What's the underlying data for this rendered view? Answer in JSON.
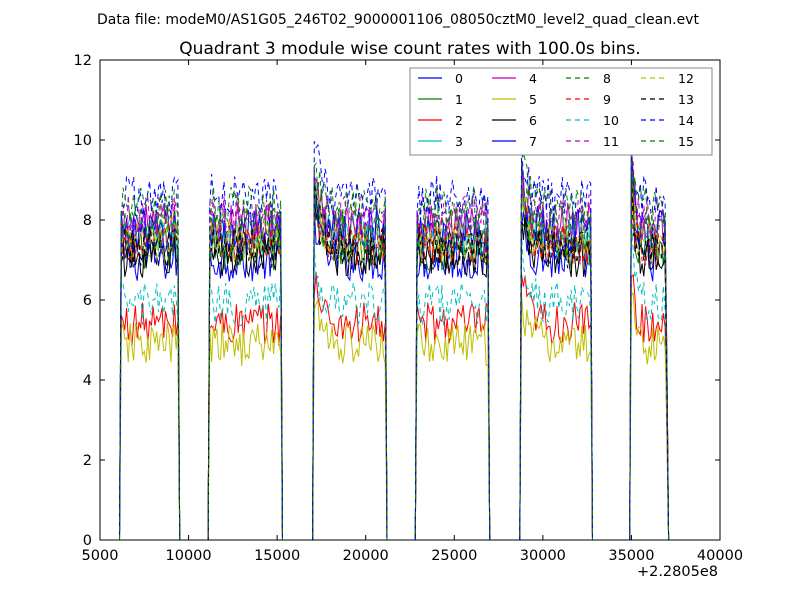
{
  "figure": {
    "suptitle": "Data file: modeM0/AS1G05_246T02_9000001106_08050cztM0_level2_quad_clean.evt"
  },
  "chart_data": {
    "type": "line",
    "title": "Quadrant 3 module wise count rates with 100.0s bins.",
    "xlabel": "",
    "ylabel": "",
    "xlim": [
      5000,
      40000
    ],
    "ylim": [
      0,
      12
    ],
    "x_ticks": [
      5000,
      10000,
      15000,
      20000,
      25000,
      30000,
      35000,
      40000
    ],
    "x_tick_labels": [
      "5000",
      "10000",
      "15000",
      "20000",
      "25000",
      "30000",
      "35000",
      "40000"
    ],
    "y_ticks": [
      0,
      2,
      4,
      6,
      8,
      10,
      12
    ],
    "y_tick_labels": [
      "0",
      "2",
      "4",
      "6",
      "8",
      "10",
      "12"
    ],
    "x_offset_label": "+2.2805e8",
    "grid": false,
    "legend_position": "top-right",
    "legend_columns": 4,
    "bin_size_s": 100,
    "active_segments": [
      [
        6200,
        9400
      ],
      [
        11200,
        15200
      ],
      [
        17100,
        21100
      ],
      [
        22900,
        26900
      ],
      [
        28800,
        32700
      ],
      [
        35000,
        37000
      ]
    ],
    "series": [
      {
        "name": "0",
        "color": "#0000ff",
        "dash": "solid",
        "level": 7.0
      },
      {
        "name": "1",
        "color": "#008000",
        "dash": "solid",
        "level": 7.3
      },
      {
        "name": "2",
        "color": "#ff0000",
        "dash": "solid",
        "level": 5.4
      },
      {
        "name": "3",
        "color": "#00bfbf",
        "dash": "solid",
        "level": 7.6
      },
      {
        "name": "4",
        "color": "#bf00bf",
        "dash": "solid",
        "level": 7.9
      },
      {
        "name": "5",
        "color": "#bfbf00",
        "dash": "solid",
        "level": 4.9
      },
      {
        "name": "6",
        "color": "#000000",
        "dash": "solid",
        "level": 7.1
      },
      {
        "name": "7",
        "color": "#0000ff",
        "dash": "solid",
        "level": 7.7
      },
      {
        "name": "8",
        "color": "#008000",
        "dash": "dashed",
        "level": 7.8
      },
      {
        "name": "9",
        "color": "#ff0000",
        "dash": "dashed",
        "level": 7.4
      },
      {
        "name": "10",
        "color": "#00bfbf",
        "dash": "dashed",
        "level": 5.9
      },
      {
        "name": "11",
        "color": "#bf00bf",
        "dash": "dashed",
        "level": 8.1
      },
      {
        "name": "12",
        "color": "#bfbf00",
        "dash": "dashed",
        "level": 7.5
      },
      {
        "name": "13",
        "color": "#000000",
        "dash": "dashed",
        "level": 7.3
      },
      {
        "name": "14",
        "color": "#0000ff",
        "dash": "dashed",
        "level": 8.6
      },
      {
        "name": "15",
        "color": "#008000",
        "dash": "dashed",
        "level": 8.3
      }
    ]
  }
}
